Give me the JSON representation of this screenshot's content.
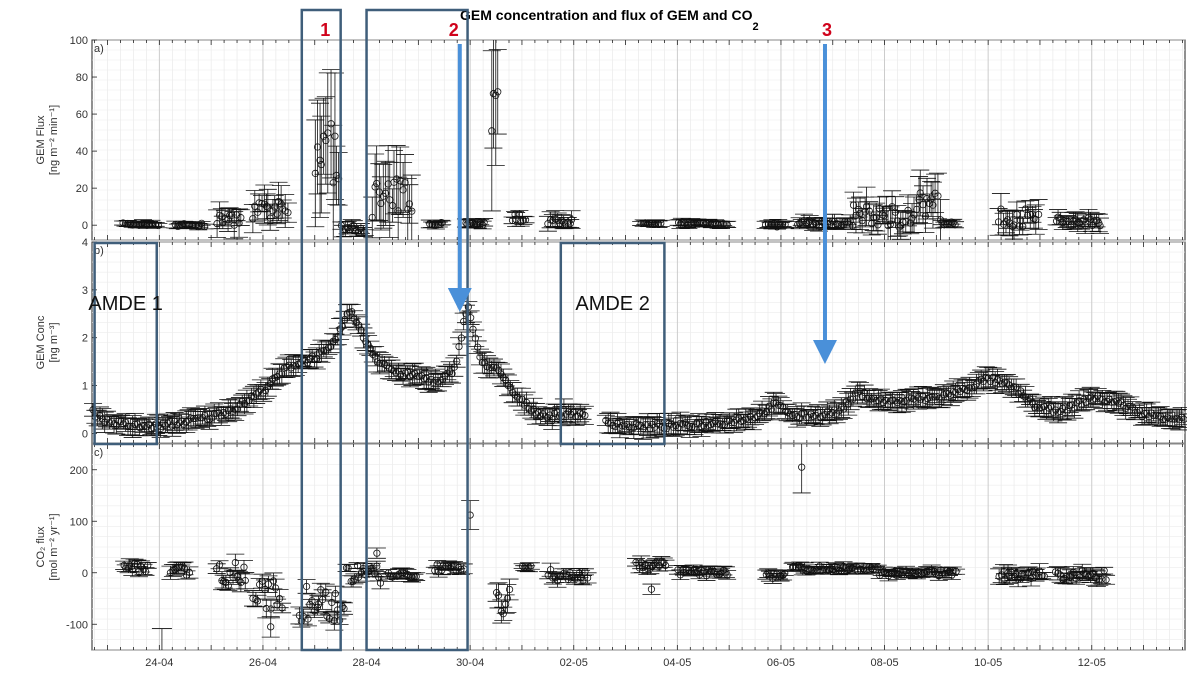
{
  "chart_data": {
    "type": "scatter",
    "title": "GEM concentration and flux of GEM and CO",
    "title_subscript": "2",
    "x_tick_labels": [
      "24-04",
      "26-04",
      "28-04",
      "30-04",
      "02-05",
      "04-05",
      "06-05",
      "08-05",
      "10-05",
      "12-05"
    ],
    "x_range_days": [
      22.7,
      43.8
    ],
    "panels": [
      {
        "id": "a",
        "panel_label": "a)",
        "ylabel_line1": "GEM Flux",
        "ylabel_line2": "[ng m⁻² min⁻¹]",
        "ylim": [
          -8,
          100
        ],
        "yticks": [
          "100",
          "80",
          "60",
          "40",
          "20",
          "0"
        ],
        "ytick_values": [
          100,
          80,
          60,
          40,
          20,
          0
        ],
        "segments": [
          {
            "start": 23.3,
            "end": 24.0,
            "base": 0.5,
            "amp": 0.8,
            "err": 1.5
          },
          {
            "start": 24.3,
            "end": 24.9,
            "base": 0.0,
            "amp": 1.0,
            "err": 1.5
          },
          {
            "start": 25.1,
            "end": 25.6,
            "base": 3.0,
            "amp": 3.0,
            "err": 6
          },
          {
            "start": 25.8,
            "end": 26.5,
            "base": 7.0,
            "amp": 6.0,
            "err": 8
          },
          {
            "start": 27.0,
            "end": 27.5,
            "base": 40.0,
            "amp": 18.0,
            "err": 28
          },
          {
            "start": 27.5,
            "end": 28.0,
            "base": -2.0,
            "amp": 2.0,
            "err": 3
          },
          {
            "start": 28.1,
            "end": 28.9,
            "base": 14.0,
            "amp": 12.0,
            "err": 16
          },
          {
            "start": 29.2,
            "end": 29.5,
            "base": 1.0,
            "amp": 1.0,
            "err": 2
          },
          {
            "start": 29.9,
            "end": 30.3,
            "base": 1.0,
            "amp": 1.0,
            "err": 2
          },
          {
            "start": 30.4,
            "end": 30.55,
            "base": 62.0,
            "amp": 14.0,
            "err": 35
          },
          {
            "start": 30.8,
            "end": 31.1,
            "base": 4.0,
            "amp": 2.0,
            "err": 3
          },
          {
            "start": 31.5,
            "end": 32.0,
            "base": 2.0,
            "amp": 1.5,
            "err": 4
          },
          {
            "start": 33.3,
            "end": 33.7,
            "base": 0.5,
            "amp": 0.8,
            "err": 1.5
          },
          {
            "start": 34.0,
            "end": 35.0,
            "base": 1.0,
            "amp": 1.0,
            "err": 2
          },
          {
            "start": 35.7,
            "end": 36.1,
            "base": 0.0,
            "amp": 1.0,
            "err": 2
          },
          {
            "start": 36.3,
            "end": 37.4,
            "base": 1.0,
            "amp": 1.5,
            "err": 3
          },
          {
            "start": 37.4,
            "end": 38.6,
            "base": 5.0,
            "amp": 6.0,
            "err": 8
          },
          {
            "start": 38.6,
            "end": 39.1,
            "base": 10.0,
            "amp": 8.0,
            "err": 10
          },
          {
            "start": 39.1,
            "end": 39.4,
            "base": 1.0,
            "amp": 1.0,
            "err": 2
          },
          {
            "start": 40.2,
            "end": 41.0,
            "base": 4.0,
            "amp": 5.0,
            "err": 7
          },
          {
            "start": 41.3,
            "end": 42.2,
            "base": 2.0,
            "amp": 2.5,
            "err": 4
          }
        ]
      },
      {
        "id": "b",
        "panel_label": "b)",
        "ylabel_line1": "GEM Conc",
        "ylabel_line2": "[ng m⁻³]",
        "ylim": [
          -0.2,
          4
        ],
        "yticks": [
          "4",
          "3",
          "2",
          "1",
          "0"
        ],
        "ytick_values": [
          4,
          3,
          2,
          1,
          0
        ],
        "curve": [
          [
            22.7,
            0.45
          ],
          [
            23.0,
            0.25
          ],
          [
            23.5,
            0.15
          ],
          [
            24.0,
            0.15
          ],
          [
            24.5,
            0.25
          ],
          [
            25.0,
            0.35
          ],
          [
            25.5,
            0.55
          ],
          [
            26.0,
            0.9
          ],
          [
            26.5,
            1.4
          ],
          [
            26.9,
            1.55
          ],
          [
            27.3,
            1.75
          ],
          [
            27.7,
            2.6
          ],
          [
            27.9,
            2.1
          ],
          [
            28.2,
            1.55
          ],
          [
            28.6,
            1.25
          ],
          [
            29.0,
            1.2
          ],
          [
            29.4,
            1.05
          ],
          [
            29.7,
            1.35
          ],
          [
            29.95,
            2.7
          ],
          [
            30.2,
            1.5
          ],
          [
            30.5,
            1.35
          ],
          [
            30.9,
            0.75
          ],
          [
            31.2,
            0.5
          ],
          [
            31.5,
            0.35
          ],
          [
            31.9,
            0.45
          ],
          [
            32.2,
            0.35
          ],
          [
            32.6,
            0.25
          ],
          [
            33.0,
            0.15
          ],
          [
            33.5,
            0.15
          ],
          [
            34.0,
            0.15
          ],
          [
            34.5,
            0.2
          ],
          [
            35.0,
            0.25
          ],
          [
            35.5,
            0.35
          ],
          [
            35.9,
            0.6
          ],
          [
            36.3,
            0.35
          ],
          [
            36.7,
            0.4
          ],
          [
            37.1,
            0.45
          ],
          [
            37.5,
            0.85
          ],
          [
            38.0,
            0.65
          ],
          [
            38.5,
            0.7
          ],
          [
            39.0,
            0.75
          ],
          [
            39.5,
            0.9
          ],
          [
            40.0,
            1.15
          ],
          [
            40.5,
            0.95
          ],
          [
            41.0,
            0.5
          ],
          [
            41.5,
            0.5
          ],
          [
            42.0,
            0.75
          ],
          [
            42.5,
            0.65
          ],
          [
            43.0,
            0.4
          ],
          [
            43.8,
            0.3
          ]
        ],
        "curve_err": 0.18
      },
      {
        "id": "c",
        "panel_label": "c)",
        "ylabel_line1": "CO₂ flux",
        "ylabel_line2": "[mol m⁻² yr⁻¹]",
        "ylim": [
          -150,
          250
        ],
        "yticks": [
          "200",
          "100",
          "0",
          "-100"
        ],
        "ytick_values": [
          200,
          100,
          0,
          -100
        ],
        "segments": [
          {
            "start": 23.3,
            "end": 23.8,
            "base": 10,
            "amp": 8,
            "err": 10
          },
          {
            "start": 24.2,
            "end": 24.6,
            "base": 5,
            "amp": 10,
            "err": 10
          },
          {
            "start": 25.1,
            "end": 25.7,
            "base": 0,
            "amp": 25,
            "err": 15
          },
          {
            "start": 25.8,
            "end": 26.4,
            "base": -45,
            "amp": 30,
            "err": 15
          },
          {
            "start": 26.7,
            "end": 27.6,
            "base": -60,
            "amp": 35,
            "err": 15
          },
          {
            "start": 27.6,
            "end": 28.3,
            "base": -5,
            "amp": 20,
            "err": 10
          },
          {
            "start": 28.4,
            "end": 29.0,
            "base": -5,
            "amp": 5,
            "err": 8
          },
          {
            "start": 29.3,
            "end": 29.9,
            "base": 10,
            "amp": 8,
            "err": 10
          },
          {
            "start": 30.5,
            "end": 30.8,
            "base": -80,
            "amp": 50,
            "err": 25
          },
          {
            "start": 31.0,
            "end": 31.2,
            "base": 10,
            "amp": 5,
            "err": 8
          },
          {
            "start": 31.5,
            "end": 32.3,
            "base": -5,
            "amp": 12,
            "err": 10
          },
          {
            "start": 33.2,
            "end": 33.8,
            "base": 15,
            "amp": 10,
            "err": 10
          },
          {
            "start": 34.0,
            "end": 35.0,
            "base": 0,
            "amp": 6,
            "err": 8
          },
          {
            "start": 35.7,
            "end": 36.1,
            "base": -5,
            "amp": 6,
            "err": 8
          },
          {
            "start": 36.2,
            "end": 37.9,
            "base": 8,
            "amp": 5,
            "err": 8
          },
          {
            "start": 37.9,
            "end": 39.4,
            "base": 0,
            "amp": 6,
            "err": 8
          },
          {
            "start": 40.2,
            "end": 41.1,
            "base": -5,
            "amp": 8,
            "err": 12
          },
          {
            "start": 41.3,
            "end": 42.3,
            "base": -5,
            "amp": 10,
            "err": 12
          }
        ],
        "outliers": [
          {
            "x": 24.05,
            "y": -120,
            "err": 0
          },
          {
            "x": 26.15,
            "y": -105,
            "err": 20
          },
          {
            "x": 30.0,
            "y": 112,
            "err": 28
          },
          {
            "x": 36.4,
            "y": 205,
            "err": 50
          },
          {
            "x": 33.5,
            "y": -32,
            "err": 10
          },
          {
            "x": 28.2,
            "y": 38,
            "err": 10
          }
        ]
      }
    ],
    "annotations": {
      "boxes": [
        {
          "text": "AMDE 1",
          "x0": 22.75,
          "x1": 23.95
        },
        {
          "text": "AMDE 2",
          "x0": 31.75,
          "x1": 33.75
        }
      ],
      "events": [
        {
          "label": "1",
          "x0": 26.75,
          "x1": 27.5
        },
        {
          "label": "2",
          "x0": 28.0,
          "x1": 29.95,
          "arrow_x": 29.8
        },
        {
          "label": "3",
          "arrow_x": 36.85
        }
      ],
      "frame_color": "#3f5e7a",
      "arrow_color": "#4a90d9",
      "event_label_color": "#d0021b"
    }
  }
}
